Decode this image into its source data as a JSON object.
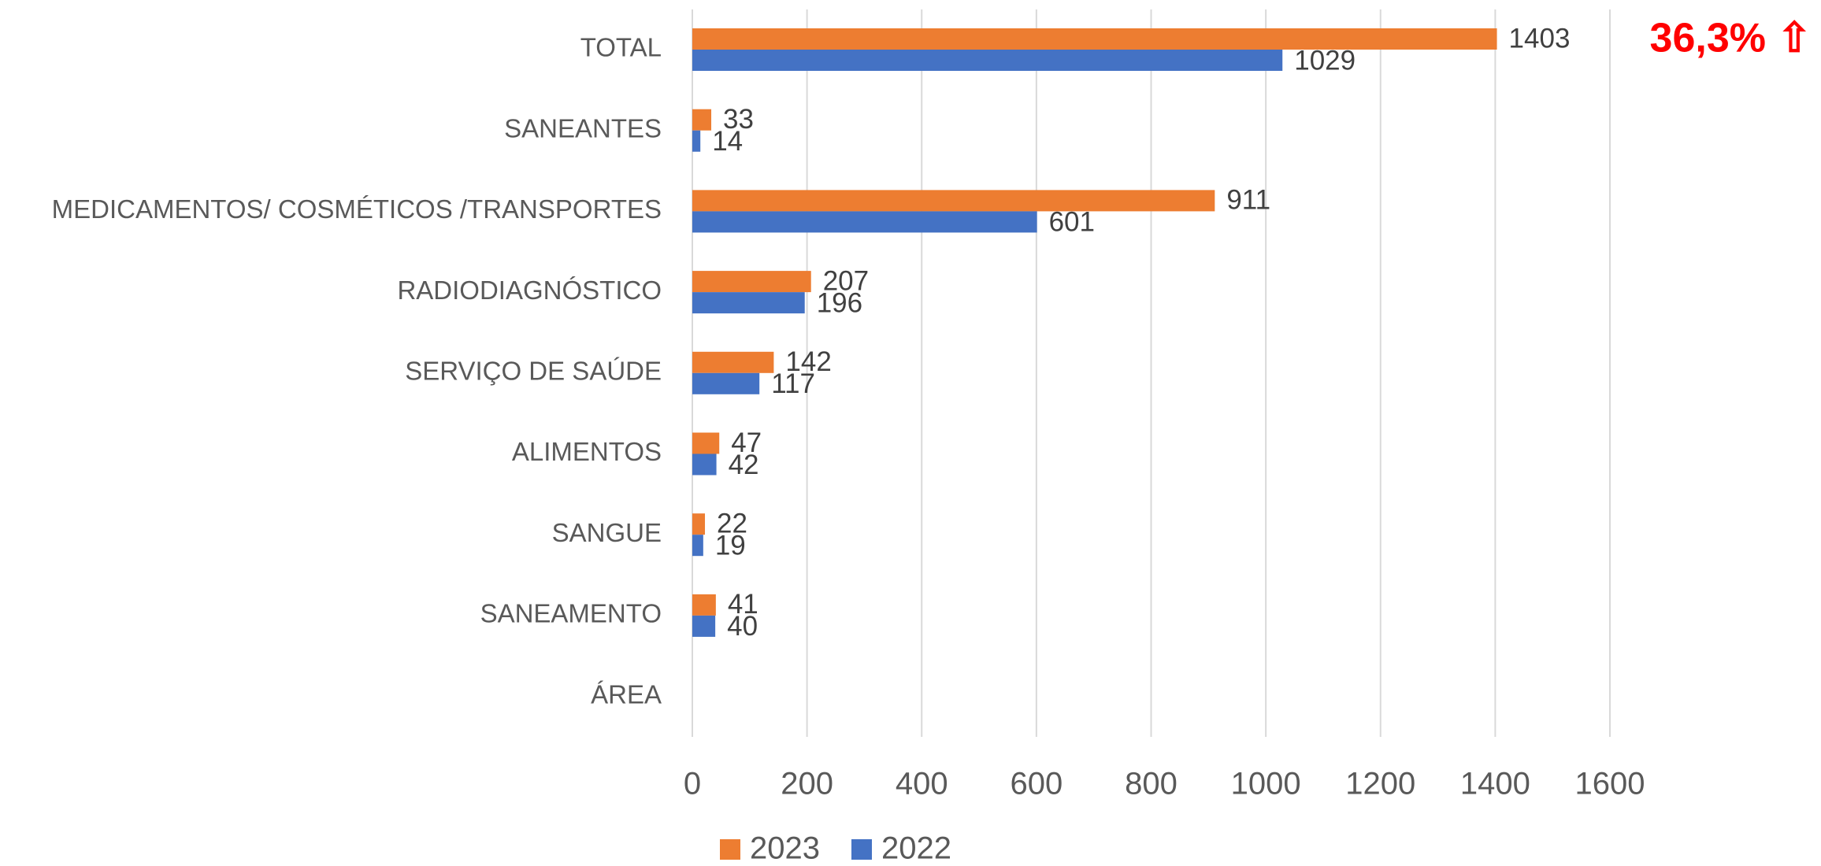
{
  "chart_data": {
    "type": "bar",
    "orientation": "horizontal",
    "categories": [
      "TOTAL",
      "SANEANTES",
      "MEDICAMENTOS/ COSMÉTICOS /TRANSPORTES",
      "RADIODIAGNÓSTICO",
      "SERVIÇO DE SAÚDE",
      "ALIMENTOS",
      "SANGUE",
      "SANEAMENTO",
      "ÁREA"
    ],
    "series": [
      {
        "name": "2023",
        "color": "#ed7d31",
        "values": [
          1403,
          33,
          911,
          207,
          142,
          47,
          22,
          41,
          null
        ]
      },
      {
        "name": "2022",
        "color": "#4472c4",
        "values": [
          1029,
          14,
          601,
          196,
          117,
          42,
          19,
          40,
          null
        ]
      }
    ],
    "xlim": [
      0,
      1600
    ],
    "xticks": [
      0,
      200,
      400,
      600,
      800,
      1000,
      1200,
      1400,
      1600
    ],
    "grid": true,
    "legend": "bottom",
    "annotation": "36,3% ⇧",
    "annotation_color": "#ff0000"
  }
}
